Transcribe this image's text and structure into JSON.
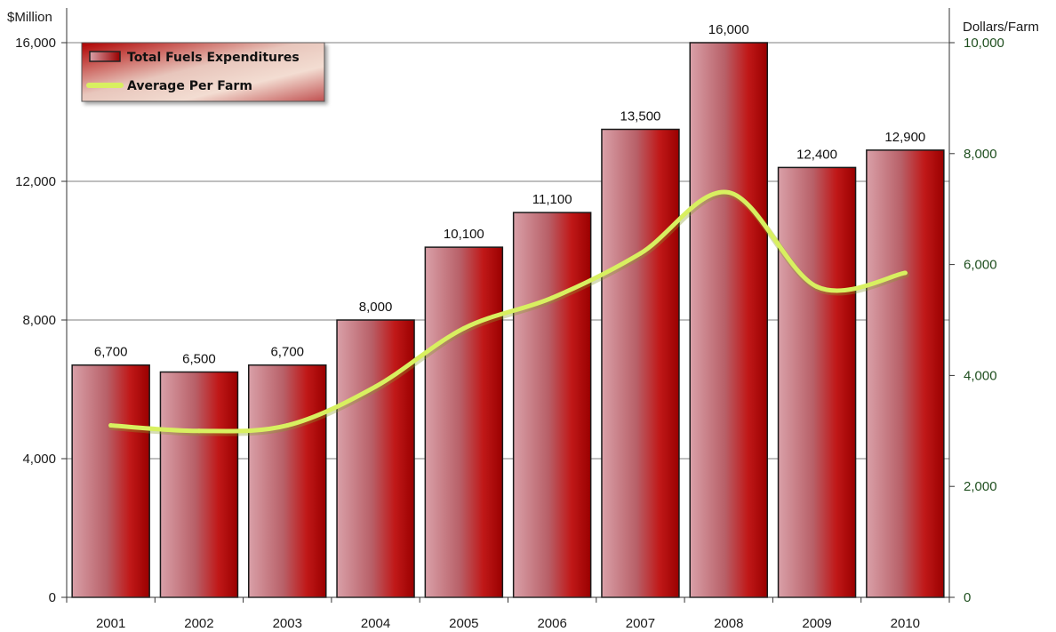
{
  "chart_data": {
    "type": "bar",
    "categories": [
      "2001",
      "2002",
      "2003",
      "2004",
      "2005",
      "2006",
      "2007",
      "2008",
      "2009",
      "2010"
    ],
    "series": [
      {
        "name": "Total Fuels Expenditures",
        "type": "bar",
        "axis": "left",
        "values": [
          6700,
          6500,
          6700,
          8000,
          10100,
          11100,
          13500,
          16000,
          12400,
          12900
        ],
        "labels": [
          "6,700",
          "6,500",
          "6,700",
          "8,000",
          "10,100",
          "11,100",
          "13,500",
          "16,000",
          "12,400",
          "12,900"
        ]
      },
      {
        "name": "Average Per Farm",
        "type": "line",
        "axis": "right",
        "values": [
          3100,
          3000,
          3100,
          3800,
          4850,
          5400,
          6200,
          7300,
          5600,
          5850
        ]
      }
    ],
    "ylabel_left": "$Million",
    "ylabel_right": "Dollars/Farm",
    "ylim_left": [
      0,
      17000
    ],
    "ylim_right": [
      0,
      10625
    ],
    "yticks_left": [
      0,
      4000,
      8000,
      12000,
      16000
    ],
    "yticks_left_labels": [
      "0",
      "4,000",
      "8,000",
      "12,000",
      "16,000"
    ],
    "yticks_right": [
      0,
      2000,
      4000,
      6000,
      8000,
      10000
    ],
    "yticks_right_labels": [
      "0",
      "2,000",
      "4,000",
      "6,000",
      "8,000",
      "10,000"
    ],
    "grid": "horizontal",
    "legend_position": "top-left",
    "colors": {
      "bar_dark": "#b00000",
      "bar_light": "#d89aa2",
      "line": "#d8f060",
      "grid": "#7f7f7f"
    }
  }
}
